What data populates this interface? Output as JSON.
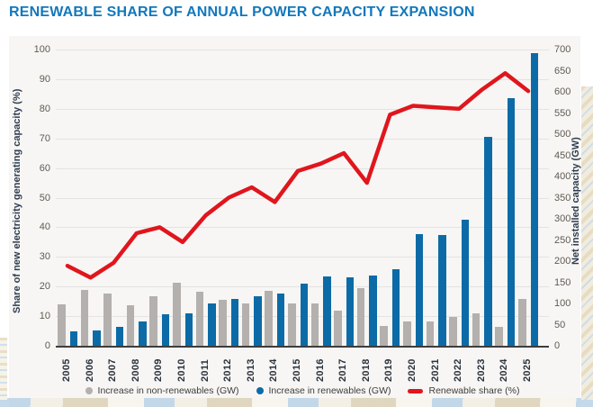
{
  "title": "RENEWABLE SHARE OF ANNUAL POWER CAPACITY EXPANSION",
  "colors": {
    "title": "#1178bb",
    "non_renewables_bar": "#b3b0ad",
    "renewables_bar": "#0c6ba6",
    "share_line": "#e0161d",
    "grid": "#e5e3e1",
    "baseline": "#3e3d3b",
    "panel_bg": "#f7f6f4",
    "tick_text": "#615a52",
    "year_text": "#2a323c",
    "axis_title_text": "#2e3d4f",
    "legend_text": "#3c3c3c"
  },
  "chart_data": {
    "type": "bar+line",
    "title": "RENEWABLE SHARE OF ANNUAL POWER CAPACITY EXPANSION",
    "categories": [
      "2005",
      "2006",
      "2007",
      "2008",
      "2009",
      "2010",
      "2011",
      "2012",
      "2013",
      "2014",
      "2015",
      "2016",
      "2017",
      "2018",
      "2019",
      "2020",
      "2021",
      "2022",
      "2023",
      "2024",
      "2025"
    ],
    "series": [
      {
        "name": "Increase in non-renewables (GW)",
        "type": "bar",
        "axis": "right",
        "color_key": "non_renewables_bar",
        "values": [
          98,
          132,
          123,
          96,
          118,
          148,
          127,
          108,
          100,
          130,
          100,
          99,
          83,
          137,
          47,
          58,
          58,
          69,
          77,
          44,
          110
        ]
      },
      {
        "name": "Increase in renewables (GW)",
        "type": "bar",
        "axis": "right",
        "color_key": "renewables_bar",
        "values": [
          34,
          36,
          44,
          57,
          74,
          77,
          99,
          110,
          118,
          124,
          147,
          164,
          162,
          167,
          180,
          264,
          261,
          297,
          494,
          585,
          691
        ]
      },
      {
        "name": "Renewable share (%)",
        "type": "line",
        "axis": "left",
        "color_key": "share_line",
        "values": [
          27,
          23,
          28,
          38,
          40,
          35,
          44,
          50,
          53.5,
          48.5,
          59,
          61.5,
          65,
          55,
          78,
          81,
          80.5,
          80,
          86.5,
          92,
          86
        ]
      }
    ],
    "left_axis": {
      "label": "Share of new electricity generating capacity (%)",
      "min": 0,
      "max": 100,
      "step": 10
    },
    "right_axis": {
      "label": "Net installed capacity (GW)",
      "min": 0,
      "max": 700,
      "step": 50
    },
    "grid": "horizontal gridlines at left-axis ticks",
    "legend_position": "bottom center"
  },
  "legend": {
    "items": [
      {
        "swatch": "circle",
        "series_index": 0,
        "label": "Increase in non-renewables (GW)"
      },
      {
        "swatch": "circle",
        "series_index": 1,
        "label": "Increase in renewables (GW)"
      },
      {
        "swatch": "line",
        "series_index": 2,
        "label": "Renewable share (%)"
      }
    ]
  }
}
